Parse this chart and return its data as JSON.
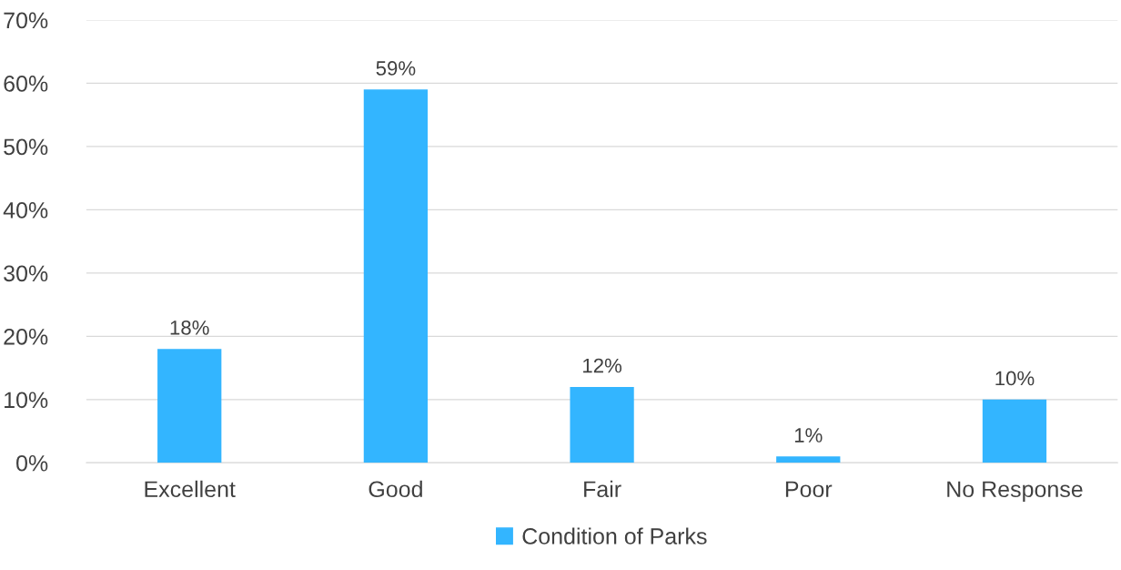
{
  "chart_data": {
    "type": "bar",
    "categories": [
      "Excellent",
      "Good",
      "Fair",
      "Poor",
      "No Response"
    ],
    "series": [
      {
        "name": "Condition of Parks",
        "color": "#33b5ff",
        "values": [
          18,
          59,
          12,
          1,
          10
        ],
        "value_labels": [
          "18%",
          "59%",
          "12%",
          "1%",
          "10%"
        ]
      }
    ],
    "ylim": [
      0,
      70
    ],
    "yticks": [
      {
        "value": 0,
        "label": "0%"
      },
      {
        "value": 10,
        "label": "10%"
      },
      {
        "value": 20,
        "label": "20%"
      },
      {
        "value": 30,
        "label": "30%"
      },
      {
        "value": 40,
        "label": "40%"
      },
      {
        "value": 50,
        "label": "50%"
      },
      {
        "value": 60,
        "label": "60%"
      },
      {
        "value": 70,
        "label": "70%"
      }
    ],
    "grid": "y",
    "legend": "bottom"
  }
}
